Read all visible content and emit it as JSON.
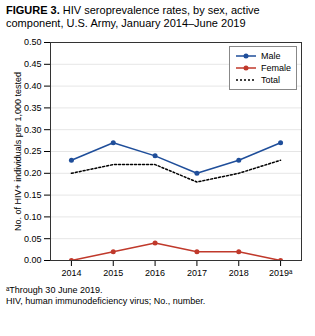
{
  "chart_data": {
    "type": "line",
    "title": "FIGURE 3. HIV seroprevalence rates, by sex, active component, U.S. Army, January 2014–June 2019",
    "x": [
      2014,
      2015,
      2016,
      2017,
      2018,
      2019
    ],
    "series": [
      {
        "name": "Male",
        "color": "#1f4e9a",
        "marker": "circle",
        "line_style": "solid",
        "values": [
          0.23,
          0.27,
          0.24,
          0.2,
          0.23,
          0.27
        ]
      },
      {
        "name": "Female",
        "color": "#c0392b",
        "marker": "circle",
        "line_style": "solid",
        "values": [
          0.0,
          0.02,
          0.04,
          0.02,
          0.02,
          0.0
        ]
      },
      {
        "name": "Total",
        "color": "#000000",
        "marker": "none",
        "line_style": "dotted",
        "values": [
          0.2,
          0.22,
          0.22,
          0.18,
          0.2,
          0.23
        ]
      }
    ],
    "xlim": [
      2013.5,
      2019.5
    ],
    "xticks": [
      2014,
      2015,
      2016,
      2017,
      2018,
      {
        "value": 2019,
        "label": "2019ᵃ"
      }
    ],
    "ylim": [
      0.0,
      0.5
    ],
    "yticks": [
      {
        "value": 0.0,
        "label": "0.00"
      },
      {
        "value": 0.05,
        "label": "0.05"
      },
      {
        "value": 0.1,
        "label": "0.10"
      },
      {
        "value": 0.15,
        "label": "0.15"
      },
      {
        "value": 0.2,
        "label": "0.20"
      },
      {
        "value": 0.25,
        "label": "0.25"
      },
      {
        "value": 0.3,
        "label": "0.30"
      },
      {
        "value": 0.35,
        "label": "0.35"
      },
      {
        "value": 0.4,
        "label": "0.40"
      },
      {
        "value": 0.45,
        "label": "0.45"
      },
      {
        "value": 0.5,
        "label": "0.50"
      }
    ],
    "ylabel": "No. of HIV+ individuals per 1,000 tested",
    "grid": true,
    "legend": "upper right",
    "annotations": [
      "ᵃThrough 30 June 2019.",
      "HIV, human immunodeficiency virus; No., number."
    ]
  }
}
